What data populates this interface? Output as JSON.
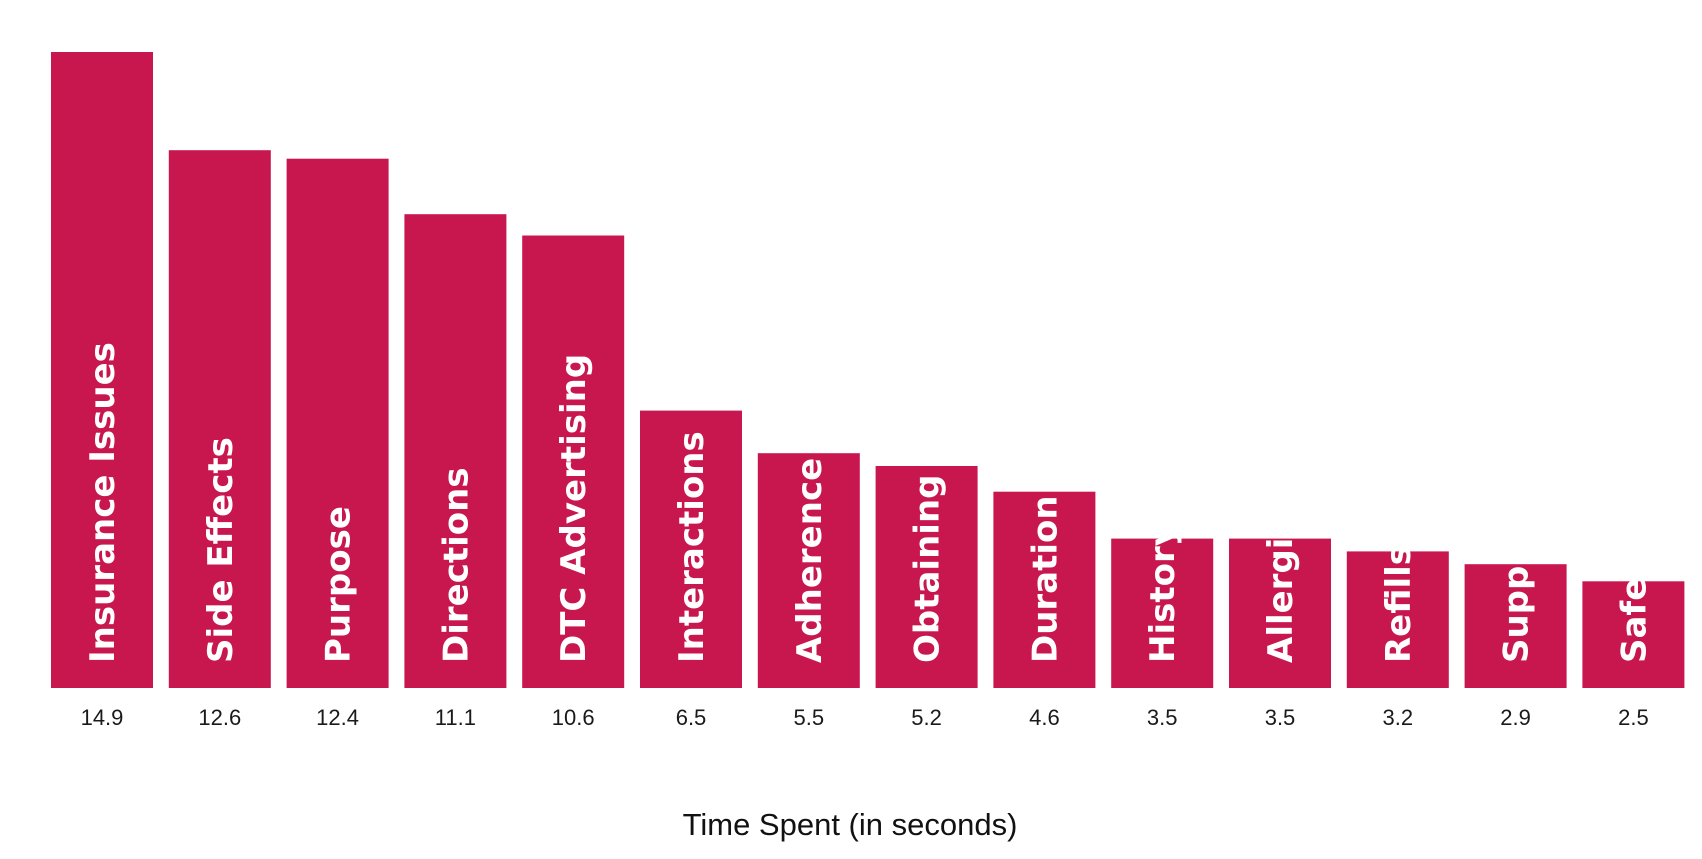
{
  "chart_data": {
    "type": "bar",
    "categories": [
      "Insurance Issues",
      "Side Effects",
      "Purpose",
      "Directions",
      "DTC Advertising",
      "Interactions",
      "Adherence",
      "Obtaining",
      "Duration",
      "History",
      "Allergies",
      "Refills",
      "Supply",
      "Safety"
    ],
    "values": [
      14.9,
      12.6,
      12.4,
      11.1,
      10.6,
      6.5,
      5.5,
      5.2,
      4.6,
      3.5,
      3.5,
      3.2,
      2.9,
      2.5
    ],
    "value_labels": [
      "14.9",
      "12.6",
      "12.4",
      "11.1",
      "10.6",
      "6.5",
      "5.5",
      "5.2",
      "4.6",
      "3.5",
      "3.5",
      "3.2",
      "2.9",
      "2.5"
    ],
    "xlabel": "Time Spent (in seconds)",
    "ylabel": "",
    "title": "",
    "ylim": [
      0,
      15
    ],
    "grid": false,
    "legend": "none",
    "bar_color": "#c8174f",
    "label_color": "#ffffff"
  }
}
